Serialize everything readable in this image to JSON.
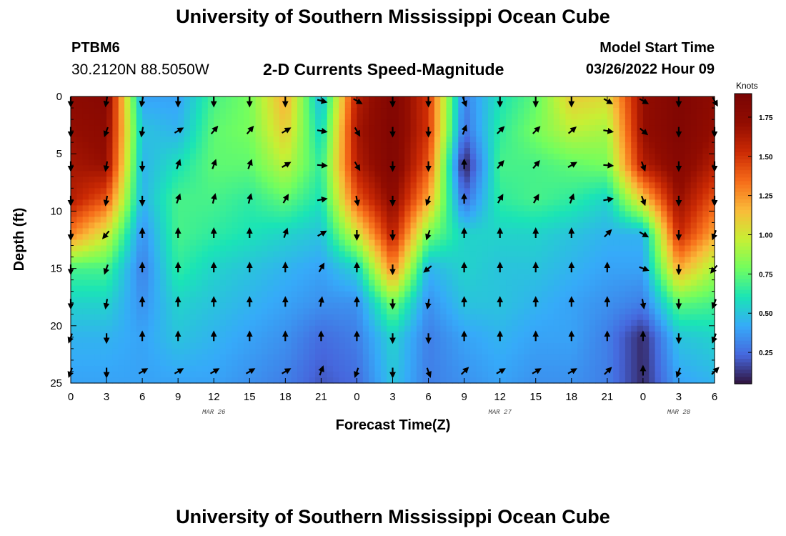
{
  "header": {
    "title": "University of Southern Mississippi Ocean Cube",
    "station": "PTBM6",
    "coords": "30.2120N  88.5050W",
    "subtitle": "2-D Currents Speed-Magnitude",
    "start_label": "Model Start Time",
    "start_value": "03/26/2022 Hour 09"
  },
  "footer": {
    "title": "University of Southern Mississippi Ocean Cube"
  },
  "chart_data": {
    "type": "heatmap",
    "title": "2-D Currents Speed-Magnitude",
    "xlabel": "Forecast Time(Z)",
    "ylabel": "Depth (ft)",
    "colorbar_label": "Knots",
    "colorbar_ticks": [
      "1.75",
      "1.50",
      "1.25",
      "1.00",
      "0.75",
      "0.50",
      "0.25"
    ],
    "colorbar_tick_values": [
      1.75,
      1.5,
      1.25,
      1.0,
      0.75,
      0.5,
      0.25
    ],
    "colorbar_range": [
      0.05,
      1.9
    ],
    "x_tick_labels": [
      "0",
      "3",
      "6",
      "9",
      "12",
      "15",
      "18",
      "21",
      "0",
      "3",
      "6",
      "9",
      "12",
      "15",
      "18",
      "21",
      "0",
      "3",
      "6"
    ],
    "x_hours": [
      0,
      3,
      6,
      9,
      12,
      15,
      18,
      21,
      24,
      27,
      30,
      33,
      36,
      39,
      42,
      45,
      48,
      51,
      54
    ],
    "x_range": [
      0,
      54
    ],
    "date_labels": [
      {
        "text": "MAR 26",
        "hour": 12
      },
      {
        "text": "MAR 27",
        "hour": 36
      },
      {
        "text": "MAR 28",
        "hour": 51
      }
    ],
    "y_tick_labels": [
      "0",
      "5",
      "10",
      "15",
      "20",
      "25"
    ],
    "y_ticks": [
      0,
      5,
      10,
      15,
      20,
      25
    ],
    "y_range": [
      0,
      25
    ],
    "speed_depths_ft": [
      0,
      3,
      6,
      9,
      12,
      15,
      18,
      21,
      25
    ],
    "speed_hours": [
      0,
      3,
      6,
      9,
      12,
      15,
      18,
      21,
      24,
      27,
      30,
      33,
      36,
      39,
      42,
      45,
      48,
      51,
      54
    ],
    "speed_knots": [
      [
        1.75,
        1.8,
        0.4,
        0.4,
        0.7,
        0.8,
        1.2,
        0.45,
        1.6,
        1.85,
        1.5,
        0.3,
        0.6,
        0.75,
        1.1,
        1.05,
        1.7,
        1.85,
        1.75
      ],
      [
        1.7,
        1.75,
        0.5,
        0.45,
        0.75,
        0.8,
        1.1,
        0.55,
        1.65,
        1.85,
        1.5,
        0.25,
        0.65,
        0.8,
        0.95,
        0.9,
        1.7,
        1.85,
        1.7
      ],
      [
        1.65,
        1.7,
        0.45,
        0.6,
        0.75,
        0.75,
        0.95,
        0.65,
        1.6,
        1.85,
        1.4,
        0.05,
        0.7,
        0.7,
        0.75,
        0.8,
        1.6,
        1.8,
        1.6
      ],
      [
        1.6,
        1.4,
        0.45,
        0.7,
        0.7,
        0.65,
        0.75,
        0.6,
        1.4,
        1.75,
        1.2,
        0.25,
        0.65,
        0.7,
        0.65,
        0.55,
        1.1,
        1.7,
        1.4
      ],
      [
        1.3,
        1.0,
        0.35,
        0.7,
        0.65,
        0.6,
        0.55,
        0.5,
        1.0,
        1.6,
        0.8,
        0.55,
        0.55,
        0.55,
        0.5,
        0.45,
        0.45,
        1.55,
        1.2
      ],
      [
        0.7,
        0.7,
        0.3,
        0.65,
        0.55,
        0.5,
        0.45,
        0.4,
        0.55,
        1.3,
        0.45,
        0.55,
        0.5,
        0.5,
        0.45,
        0.4,
        0.4,
        1.2,
        0.9
      ],
      [
        0.55,
        0.55,
        0.35,
        0.55,
        0.5,
        0.45,
        0.4,
        0.35,
        0.35,
        0.8,
        0.35,
        0.5,
        0.5,
        0.45,
        0.4,
        0.35,
        0.3,
        0.75,
        0.7
      ],
      [
        0.45,
        0.45,
        0.4,
        0.5,
        0.45,
        0.4,
        0.35,
        0.25,
        0.3,
        0.55,
        0.3,
        0.4,
        0.45,
        0.4,
        0.4,
        0.3,
        0.1,
        0.5,
        0.55
      ],
      [
        0.4,
        0.4,
        0.4,
        0.4,
        0.4,
        0.35,
        0.3,
        0.2,
        0.25,
        0.5,
        0.3,
        0.35,
        0.4,
        0.35,
        0.35,
        0.3,
        0.1,
        0.4,
        0.45
      ]
    ],
    "arrow_depths_ft": [
      0,
      3,
      6,
      9,
      12,
      15,
      18,
      21,
      24
    ],
    "arrow_hours": [
      0,
      3,
      6,
      9,
      12,
      15,
      18,
      21,
      24,
      27,
      30,
      33,
      36,
      39,
      42,
      45,
      48,
      51,
      54
    ],
    "arrow_direction_deg": [
      [
        180,
        190,
        190,
        180,
        180,
        180,
        180,
        105,
        120,
        180,
        180,
        160,
        180,
        180,
        180,
        120,
        120,
        180,
        150
      ],
      [
        180,
        200,
        190,
        60,
        40,
        40,
        60,
        100,
        150,
        180,
        180,
        20,
        45,
        45,
        50,
        100,
        130,
        180,
        180
      ],
      [
        180,
        190,
        180,
        20,
        20,
        20,
        60,
        95,
        150,
        180,
        180,
        0,
        40,
        40,
        60,
        95,
        160,
        180,
        180
      ],
      [
        180,
        190,
        180,
        20,
        15,
        15,
        30,
        80,
        170,
        180,
        200,
        0,
        30,
        30,
        20,
        80,
        160,
        180,
        180
      ],
      [
        180,
        220,
        0,
        0,
        0,
        0,
        20,
        60,
        180,
        180,
        200,
        0,
        0,
        0,
        0,
        45,
        120,
        180,
        200
      ],
      [
        180,
        200,
        0,
        0,
        0,
        0,
        0,
        30,
        0,
        180,
        230,
        0,
        0,
        0,
        0,
        0,
        110,
        180,
        220
      ],
      [
        180,
        190,
        0,
        0,
        0,
        0,
        0,
        10,
        0,
        180,
        190,
        0,
        0,
        0,
        0,
        0,
        170,
        180,
        200
      ],
      [
        200,
        180,
        0,
        0,
        0,
        0,
        0,
        0,
        0,
        180,
        180,
        0,
        0,
        0,
        0,
        0,
        0,
        180,
        200
      ],
      [
        200,
        180,
        60,
        60,
        60,
        60,
        60,
        20,
        200,
        180,
        160,
        45,
        60,
        60,
        60,
        45,
        0,
        200,
        45
      ]
    ]
  }
}
